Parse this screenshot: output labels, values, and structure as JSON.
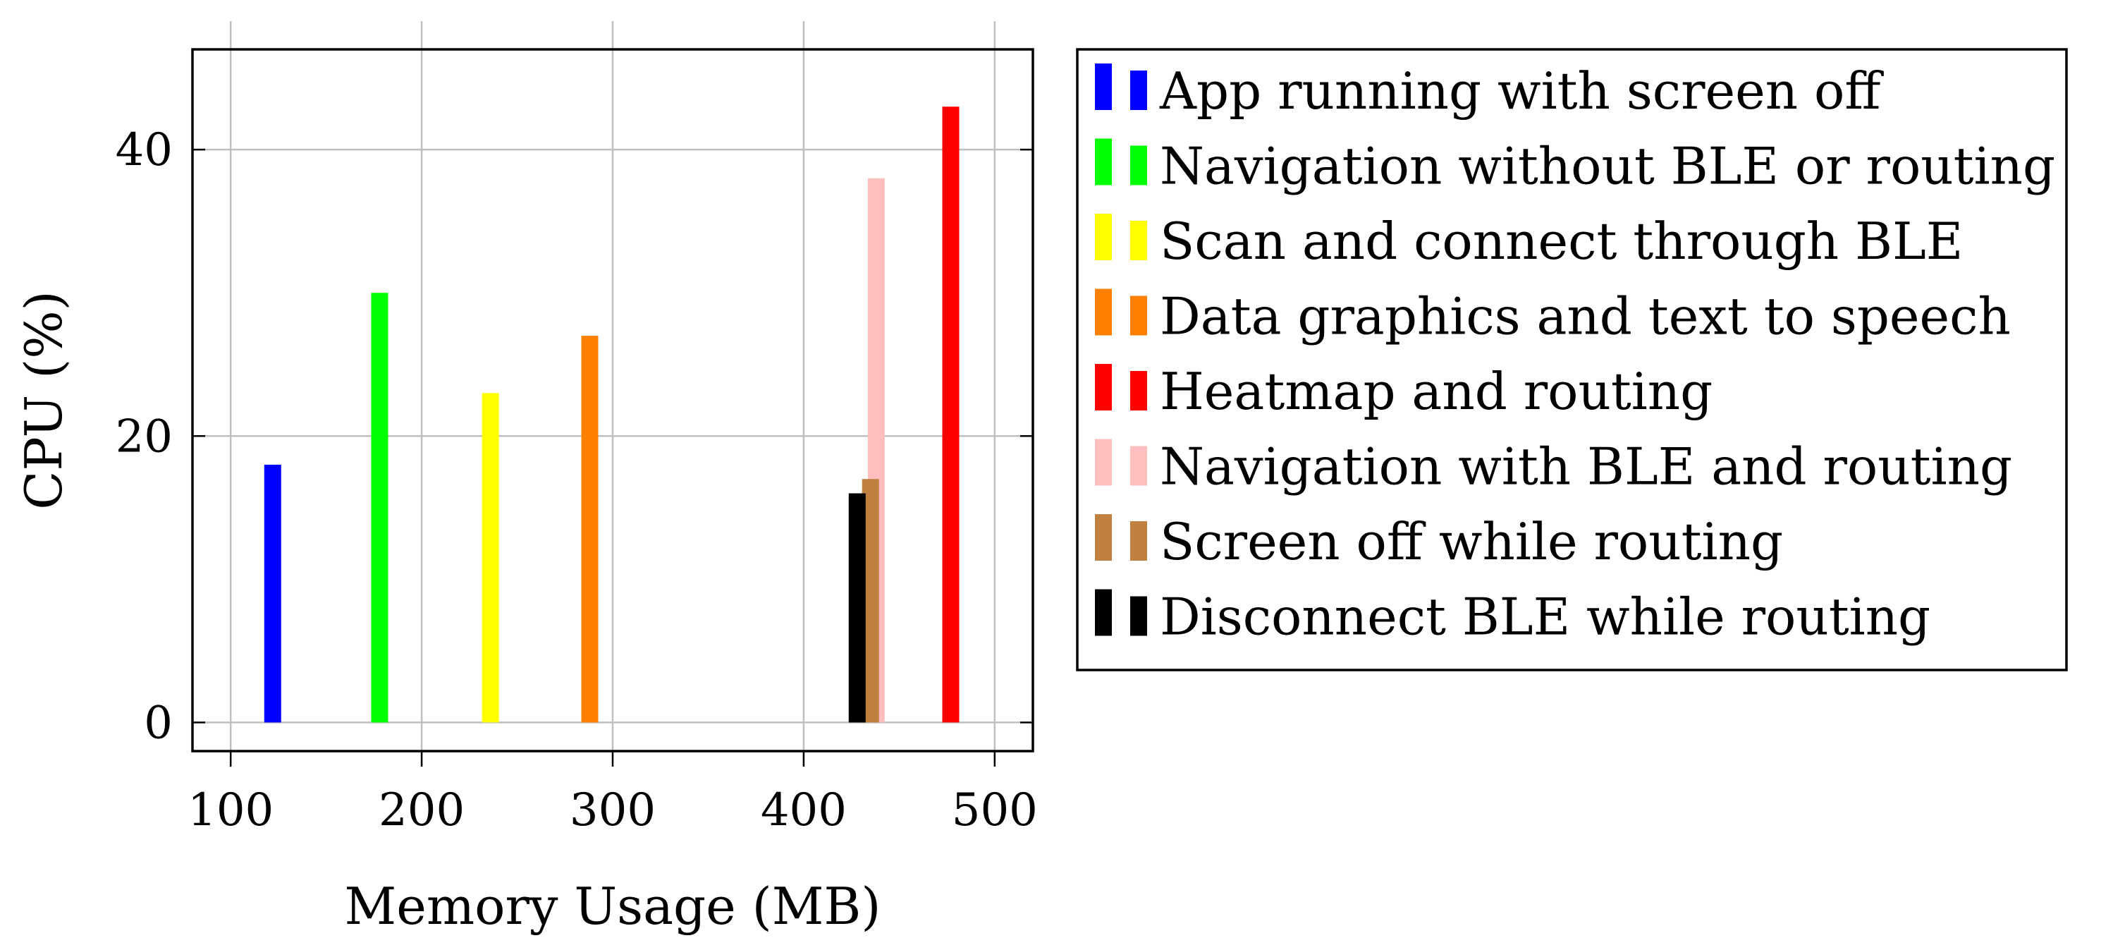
{
  "chart_data": {
    "type": "bar",
    "xlabel": "Memory Usage (MB)",
    "ylabel": "CPU (%)",
    "xlim": [
      80,
      520
    ],
    "ylim": [
      -2,
      47
    ],
    "xticks": [
      "100",
      "200",
      "300",
      "400",
      "500"
    ],
    "yticks": [
      "0",
      "20",
      "40"
    ],
    "grid": true,
    "legend_position": "outside-right",
    "series": [
      {
        "name": "App running with screen off",
        "x": 122,
        "y": 18,
        "color": "#0000ff"
      },
      {
        "name": "Navigation without BLE or routing",
        "x": 178,
        "y": 30,
        "color": "#00ff00"
      },
      {
        "name": "Scan and connect through BLE",
        "x": 236,
        "y": 23,
        "color": "#ffff00"
      },
      {
        "name": "Data graphics and text to speech",
        "x": 288,
        "y": 27,
        "color": "#ff8000"
      },
      {
        "name": "Heatmap and routing",
        "x": 477,
        "y": 43,
        "color": "#ff0000"
      },
      {
        "name": "Navigation with BLE and routing",
        "x": 438,
        "y": 38,
        "color": "#ffbfbf"
      },
      {
        "name": "Screen off while routing",
        "x": 435,
        "y": 17,
        "color": "#bf8040"
      },
      {
        "name": "Disconnect BLE while routing",
        "x": 428,
        "y": 16,
        "color": "#000000"
      }
    ]
  }
}
